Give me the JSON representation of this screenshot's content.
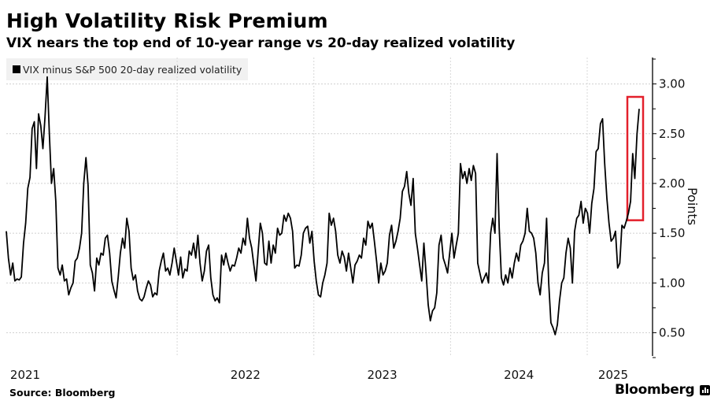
{
  "header": {
    "title": "High Volatility Risk Premium",
    "subtitle": "VIX nears the top end of 10-year range vs 20-day realized volatility"
  },
  "footer": {
    "source": "Source: Bloomberg",
    "brand": "Bloomberg",
    "brand_icon": "bloomberg-chart-icon"
  },
  "chart_data": {
    "type": "line",
    "title": "High Volatility Risk Premium",
    "subtitle": "VIX nears the top end of 10-year range vs 20-day realized volatility",
    "xlabel": "",
    "ylabel": "Points",
    "legend": {
      "position": "top-left",
      "entries": [
        "VIX minus S&P 500 20-day realized volatility"
      ]
    },
    "x_tick_labels": [
      "2021",
      "2022",
      "2023",
      "2024",
      "2025"
    ],
    "x_range_years": [
      2020.75,
      2025.38
    ],
    "year_boundaries": [
      2022,
      2023,
      2024,
      2025
    ],
    "y_ticks": [
      0.5,
      1.0,
      1.5,
      2.0,
      2.5,
      3.0
    ],
    "y_tick_labels": [
      "0.50",
      "1.00",
      "1.50",
      "2.00",
      "2.50",
      "3.00"
    ],
    "ylim": [
      0.25,
      3.25
    ],
    "grid": true,
    "y_axis_side": "right",
    "highlight": {
      "color": "#e3202b",
      "y_range": [
        1.63,
        2.87
      ],
      "description": "latest reading near range top"
    },
    "series": [
      {
        "name": "VIX minus S&P 500 20-day realized volatility",
        "color": "#000000",
        "values": [
          1.52,
          1.25,
          1.08,
          1.2,
          1.02,
          1.04,
          1.03,
          1.06,
          1.4,
          1.6,
          1.95,
          2.06,
          2.55,
          2.62,
          2.15,
          2.7,
          2.58,
          2.35,
          2.67,
          3.07,
          2.5,
          2.0,
          2.15,
          1.82,
          1.15,
          1.08,
          1.18,
          1.02,
          1.04,
          0.88,
          0.95,
          1.0,
          1.22,
          1.25,
          1.35,
          1.5,
          2.0,
          2.26,
          1.98,
          1.18,
          1.1,
          0.92,
          1.25,
          1.18,
          1.3,
          1.28,
          1.45,
          1.48,
          1.3,
          1.02,
          0.93,
          0.85,
          1.06,
          1.3,
          1.45,
          1.35,
          1.65,
          1.52,
          1.15,
          1.03,
          1.08,
          0.92,
          0.84,
          0.82,
          0.86,
          0.95,
          1.02,
          0.98,
          0.86,
          0.9,
          0.88,
          1.12,
          1.22,
          1.3,
          1.12,
          1.15,
          1.08,
          1.2,
          1.35,
          1.22,
          1.08,
          1.26,
          1.05,
          1.14,
          1.12,
          1.32,
          1.28,
          1.4,
          1.25,
          1.48,
          1.2,
          1.02,
          1.12,
          1.32,
          1.38,
          1.05,
          0.88,
          0.82,
          0.85,
          0.8,
          1.28,
          1.18,
          1.3,
          1.2,
          1.12,
          1.18,
          1.17,
          1.25,
          1.35,
          1.3,
          1.45,
          1.38,
          1.65,
          1.45,
          1.35,
          1.18,
          1.02,
          1.32,
          1.6,
          1.5,
          1.2,
          1.18,
          1.42,
          1.2,
          1.38,
          1.3,
          1.55,
          1.48,
          1.5,
          1.68,
          1.62,
          1.7,
          1.65,
          1.52,
          1.15,
          1.18,
          1.17,
          1.28,
          1.5,
          1.55,
          1.57,
          1.4,
          1.52,
          1.22,
          1.02,
          0.88,
          0.86,
          1.0,
          1.08,
          1.2,
          1.7,
          1.58,
          1.65,
          1.52,
          1.28,
          1.2,
          1.32,
          1.26,
          1.12,
          1.3,
          1.15,
          1.0,
          1.18,
          1.22,
          1.28,
          1.25,
          1.45,
          1.38,
          1.62,
          1.55,
          1.6,
          1.42,
          1.22,
          1.0,
          1.2,
          1.08,
          1.12,
          1.2,
          1.48,
          1.58,
          1.35,
          1.42,
          1.52,
          1.65,
          1.92,
          1.97,
          2.12,
          1.9,
          1.78,
          2.05,
          1.5,
          1.35,
          1.18,
          1.02,
          1.4,
          1.1,
          0.78,
          0.62,
          0.72,
          0.75,
          0.9,
          1.38,
          1.48,
          1.25,
          1.18,
          1.1,
          1.3,
          1.5,
          1.25,
          1.38,
          1.5,
          2.2,
          2.05,
          2.12,
          2.0,
          2.15,
          2.03,
          2.18,
          2.1,
          1.2,
          1.1,
          1.0,
          1.05,
          1.1,
          1.0,
          1.5,
          1.65,
          1.5,
          2.3,
          1.55,
          1.05,
          0.98,
          1.08,
          1.0,
          1.15,
          1.05,
          1.2,
          1.3,
          1.22,
          1.38,
          1.42,
          1.5,
          1.75,
          1.52,
          1.5,
          1.45,
          1.3,
          1.0,
          0.88,
          1.1,
          1.2,
          1.65,
          1.0,
          0.6,
          0.55,
          0.48,
          0.58,
          0.82,
          1.0,
          1.05,
          1.3,
          1.45,
          1.35,
          1.0,
          1.52,
          1.65,
          1.68,
          1.82,
          1.6,
          1.75,
          1.7,
          1.5,
          1.8,
          1.95,
          2.32,
          2.35,
          2.6,
          2.65,
          2.2,
          1.85,
          1.6,
          1.42,
          1.45,
          1.52,
          1.15,
          1.2,
          1.58,
          1.55,
          1.62,
          1.7,
          1.82,
          2.3,
          2.05,
          2.5,
          2.75
        ]
      }
    ]
  }
}
